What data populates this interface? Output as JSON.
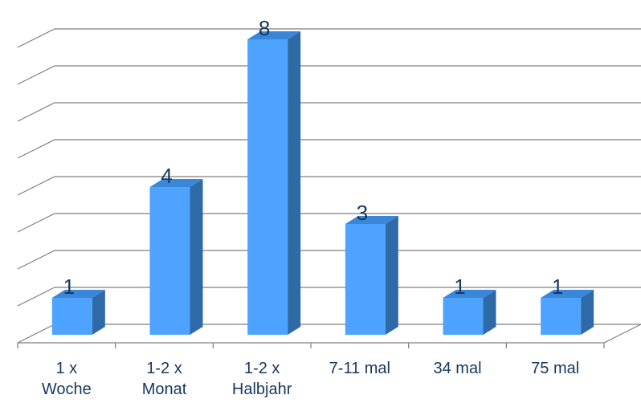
{
  "chart_data": {
    "type": "bar",
    "categories": [
      [
        "1 x",
        "Woche"
      ],
      [
        "1-2 x",
        "Monat"
      ],
      [
        "1-2 x",
        "Halbjahr"
      ],
      [
        "7-11 mal"
      ],
      [
        "34 mal"
      ],
      [
        "75 mal"
      ]
    ],
    "values": [
      1,
      4,
      8,
      3,
      1,
      1
    ],
    "data_labels": [
      "1",
      "4",
      "8",
      "3",
      "1",
      "1"
    ],
    "ylim": [
      0,
      8
    ],
    "grid": true,
    "legend": "none",
    "style": "3d-column",
    "colors": {
      "bar_front": "#4da3ff",
      "bar_side": "#2f6aa8",
      "bar_top": "#3a86d9",
      "grid": "#7f7f7f",
      "text": "#17375e"
    }
  }
}
